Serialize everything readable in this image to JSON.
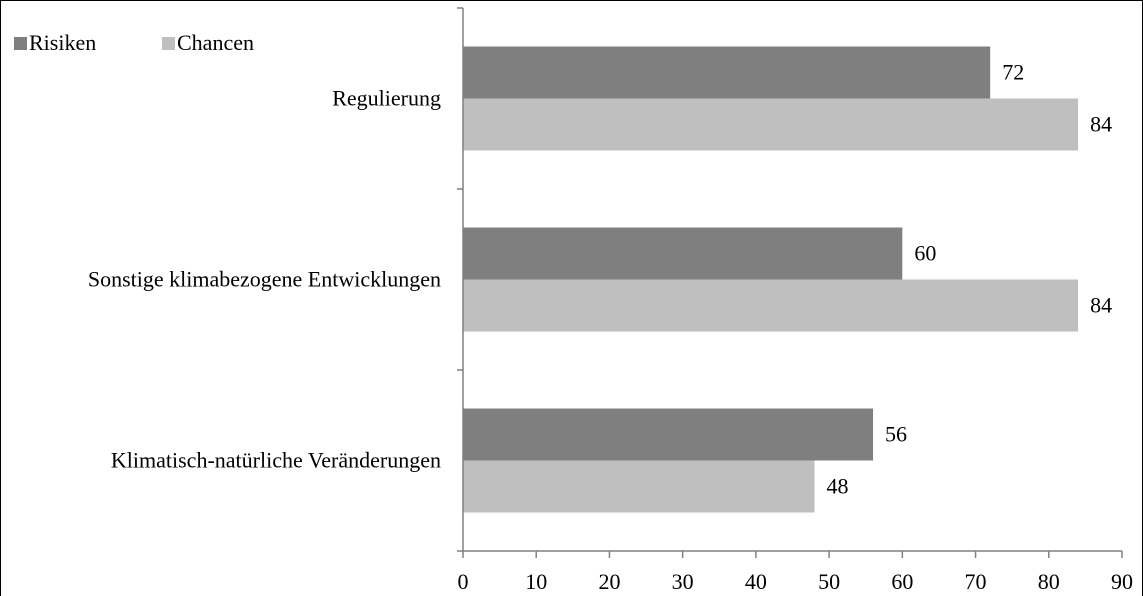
{
  "chart_data": {
    "type": "bar",
    "orientation": "horizontal",
    "categories": [
      "Regulierung",
      "Sonstige klimabezogene Entwicklungen",
      "Klimatisch-natürliche Veränderungen"
    ],
    "series": [
      {
        "name": "Risiken",
        "values": [
          72,
          60,
          56
        ],
        "color": "#7f7f7f"
      },
      {
        "name": "Chancen",
        "values": [
          84,
          84,
          48
        ],
        "color": "#bfbfbf"
      }
    ],
    "xlim": [
      0,
      90
    ],
    "xticks": [
      0,
      10,
      20,
      30,
      40,
      50,
      60,
      70,
      80,
      90
    ],
    "data_labels": true,
    "grid": false,
    "legend_position": "top-left",
    "title": "",
    "xlabel": "",
    "ylabel": ""
  }
}
